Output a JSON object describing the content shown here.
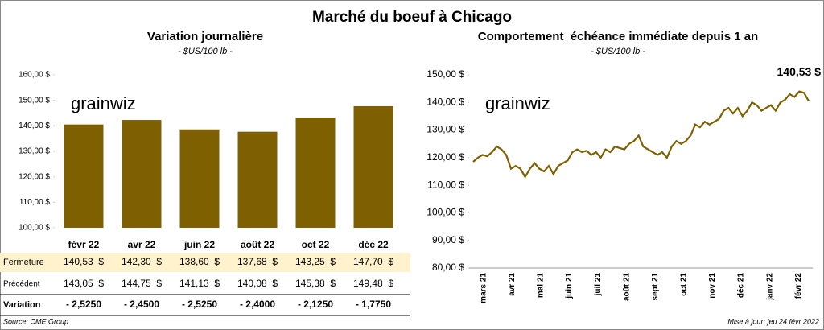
{
  "title": "Marché du boeuf à Chicago",
  "watermark": "grainwiz",
  "source": "Source: CME Group",
  "updated": "Mise à jour: jeu 24 févr 2022",
  "chart_data": [
    {
      "type": "bar",
      "title": "Variation journalière",
      "subtitle": "- $US/100 lb -",
      "color": "#7f6000",
      "categories": [
        "févr 22",
        "avr 22",
        "juin 22",
        "août 22",
        "oct 22",
        "déc 22"
      ],
      "values": [
        140.53,
        142.3,
        138.6,
        137.68,
        143.25,
        147.7
      ],
      "value_labels": [
        "140,53  $",
        "142,30  $",
        "138,60  $",
        "137,68  $",
        "143,25  $",
        "147,70  $"
      ],
      "ylim": [
        100,
        160
      ],
      "yticks": [
        {
          "value": 100,
          "label": "100,00 $"
        },
        {
          "value": 110,
          "label": "110,00 $"
        },
        {
          "value": 120,
          "label": "120,00 $"
        },
        {
          "value": 130,
          "label": "130,00 $"
        },
        {
          "value": 140,
          "label": "140,00 $"
        },
        {
          "value": 150,
          "label": "150,00 $"
        },
        {
          "value": 160,
          "label": "160,00 $"
        }
      ]
    },
    {
      "type": "line",
      "title": "Comportement  échéance immédiate depuis 1 an",
      "subtitle": "- $US/100 lb -",
      "color": "#7f6000",
      "xtick_labels": [
        "mars 21",
        "avr 21",
        "mai 21",
        "juin 21",
        "juil 21",
        "août 21",
        "sept 21",
        "oct 21",
        "nov 21",
        "déc 21",
        "janv 22",
        "févr 22"
      ],
      "values": [
        118.5,
        120,
        121,
        120.5,
        122,
        124,
        123,
        121,
        116,
        117,
        116,
        113,
        116,
        118,
        116,
        115,
        117,
        114,
        117,
        118,
        119,
        122,
        123,
        122,
        122.5,
        121,
        122,
        120,
        123,
        122,
        124,
        123.5,
        123,
        125,
        126,
        128,
        124,
        123,
        122,
        121,
        122,
        120,
        124,
        126,
        125,
        126,
        128,
        132,
        131,
        133,
        132,
        133,
        134,
        137,
        138,
        136,
        138,
        135,
        137,
        140,
        139,
        137,
        138,
        139,
        137,
        140,
        141,
        143,
        142,
        144,
        143.5,
        140.53
      ],
      "value_labels": {
        "71": "140,53 $"
      },
      "ylim": [
        80,
        150
      ],
      "yticks": [
        {
          "value": 80,
          "label": "80,00 $"
        },
        {
          "value": 90,
          "label": "90,00 $"
        },
        {
          "value": 100,
          "label": "100,00 $"
        },
        {
          "value": 110,
          "label": "110,00 $"
        },
        {
          "value": 120,
          "label": "120,00 $"
        },
        {
          "value": 130,
          "label": "130,00 $"
        },
        {
          "value": 140,
          "label": "140,00 $"
        },
        {
          "value": 150,
          "label": "150,00 $"
        }
      ]
    }
  ],
  "table": {
    "row_headers": [
      "Fermeture",
      "Précédent",
      "Variation"
    ],
    "previous": [
      "143,05  $",
      "144,75  $",
      "141,13  $",
      "140,08  $",
      "145,38  $",
      "149,48  $"
    ],
    "variation": [
      "- 2,5250",
      "- 2,4500",
      "- 2,5250",
      "- 2,4000",
      "- 2,1250",
      "- 1,7750"
    ]
  }
}
